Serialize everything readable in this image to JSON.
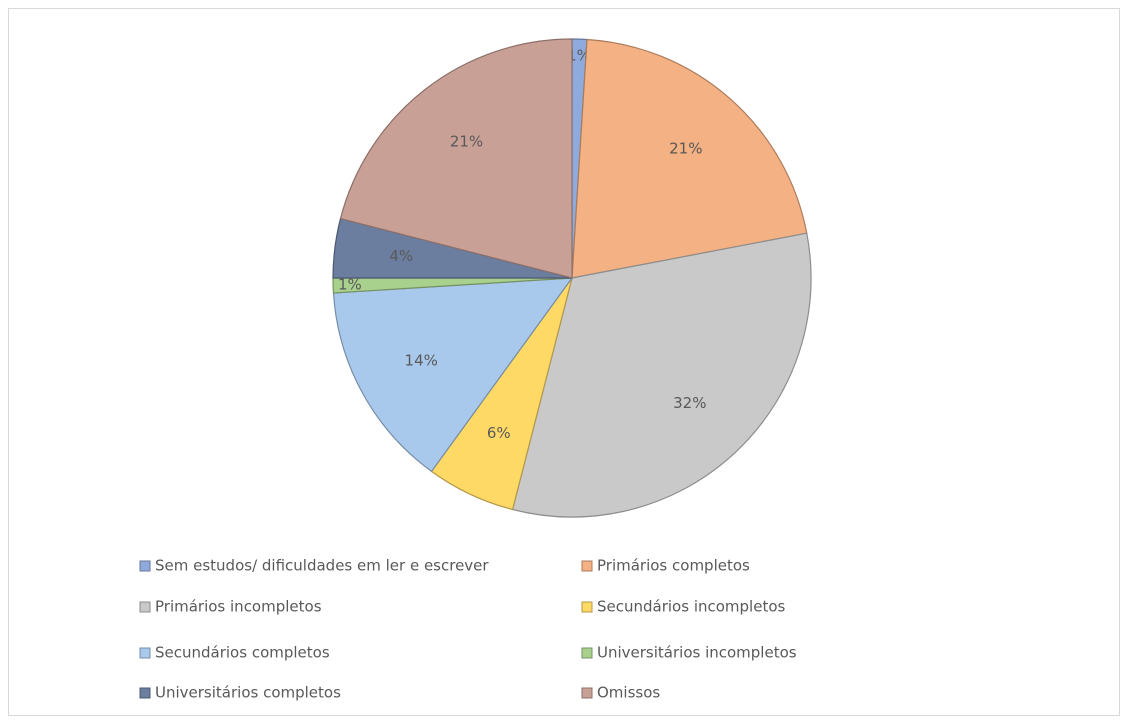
{
  "chart_data": {
    "type": "pie",
    "categories": [
      "Sem estudos/ dificuldades em ler e escrever",
      "Primários completos",
      "Primários incompletos",
      "Secundários incompletos",
      "Secundários completos",
      "Universitários incompletos",
      "Universitários completos",
      "Omissos"
    ],
    "values": [
      1,
      21,
      32,
      6,
      14,
      1,
      4,
      21
    ],
    "value_labels": [
      "1%",
      "21%",
      "32%",
      "6%",
      "14%",
      "1%",
      "4%",
      "21%"
    ],
    "colors": [
      "#8faadc",
      "#f4b183",
      "#c9c9c9",
      "#ffd966",
      "#a9c9ec",
      "#a9d18e",
      "#6c7ea0",
      "#c9a096"
    ],
    "legend": "bottom"
  }
}
